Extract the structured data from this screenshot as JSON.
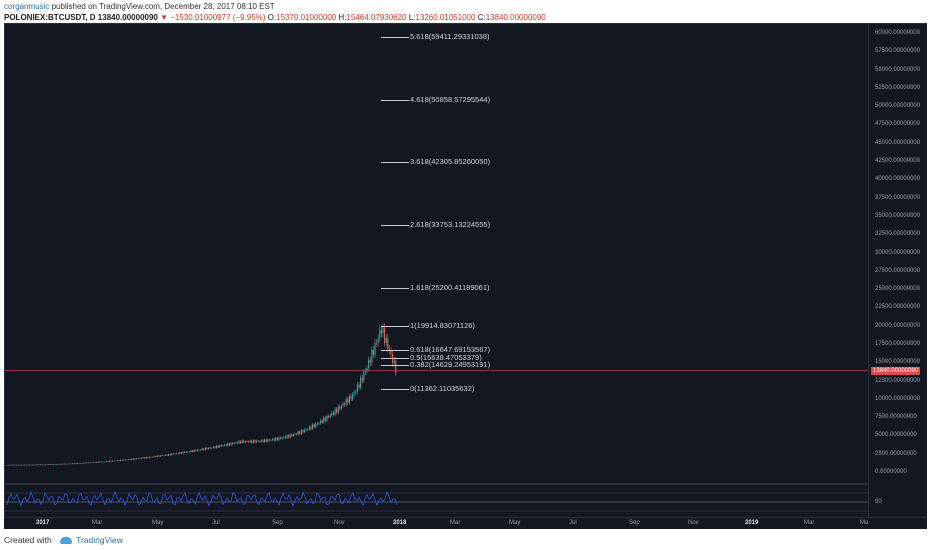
{
  "header": {
    "author": "corganmusic",
    "published": "published on TradingView.com, December 28, 2017 08:10 EST",
    "symbol": "POLONIEX:BTCUSDT, D",
    "last": "13840.00000090",
    "change": "▼ −1530.01000977 (−9.95%)",
    "open_label": "O:",
    "open": "15370.01000000",
    "high_label": "H:",
    "high": "15464.07930620",
    "low_label": "L:",
    "low": "13260.01051000",
    "close_label": "C:",
    "close": "13840.00000090"
  },
  "fib_levels": [
    {
      "label": "5.618(59411.29331038)",
      "value": 59411.29331038
    },
    {
      "label": "4.618(50858.57295544)",
      "value": 50858.57295544
    },
    {
      "label": "3.618(42305.85260050)",
      "value": 42305.8526005
    },
    {
      "label": "2.618(33753.13224555)",
      "value": 33753.13224555
    },
    {
      "label": "1.618(25200.41189061)",
      "value": 25200.41189061
    },
    {
      "label": "1(19914.83071126)",
      "value": 19914.83071126
    },
    {
      "label": "0.618(16647.69153567)",
      "value": 16647.69153567
    },
    {
      "label": "0.5(15638.47053379)",
      "value": 15638.47053379
    },
    {
      "label": "0.382(14629.24953191)",
      "value": 14629.24953191
    },
    {
      "label": "0(11362.11035632)",
      "value": 11362.11035632
    }
  ],
  "y_ticks": [
    "60000.00000000",
    "57500.00000000",
    "55000.00000000",
    "52500.00000000",
    "50000.00000000",
    "47500.00000000",
    "45000.00000000",
    "42500.00000000",
    "40000.00000000",
    "37500.00000000",
    "35000.00000000",
    "32500.00000000",
    "30000.00000000",
    "27500.00000000",
    "25000.00000000",
    "22500.00000000",
    "20000.00000000",
    "17500.00000000",
    "15000.00000000",
    "12500.00000000",
    "10000.00000000",
    "7500.00000000",
    "5000.00000000",
    "2500.00000000",
    "0.00000000"
  ],
  "y_values": [
    60000,
    57500,
    55000,
    52500,
    50000,
    47500,
    45000,
    42500,
    40000,
    37500,
    35000,
    32500,
    30000,
    27500,
    25000,
    22500,
    20000,
    17500,
    15000,
    12500,
    10000,
    7500,
    5000,
    2500,
    0
  ],
  "current_price_tag": "13840.00000090",
  "current_price": 13840,
  "rsi_tick": "50",
  "x_ticks": [
    {
      "label": "2017",
      "bold": true
    },
    {
      "label": "Mar",
      "bold": false
    },
    {
      "label": "May",
      "bold": false
    },
    {
      "label": "Jul",
      "bold": false
    },
    {
      "label": "Sep",
      "bold": false
    },
    {
      "label": "Nov",
      "bold": false
    },
    {
      "label": "2018",
      "bold": true
    },
    {
      "label": "Mar",
      "bold": false
    },
    {
      "label": "May",
      "bold": false
    },
    {
      "label": "Jul",
      "bold": false
    },
    {
      "label": "Sep",
      "bold": false
    },
    {
      "label": "Nov",
      "bold": false
    },
    {
      "label": "2019",
      "bold": true
    },
    {
      "label": "Mar",
      "bold": false
    },
    {
      "label": "Ma",
      "bold": false
    }
  ],
  "badge_count": "7",
  "footer": {
    "created_with": "Created with",
    "brand": "TradingView"
  },
  "colors": {
    "background": "#131722",
    "price_line": "#e0484b",
    "up": "#26a69a",
    "down": "#ef5350",
    "rsi": "#2962ff"
  }
}
